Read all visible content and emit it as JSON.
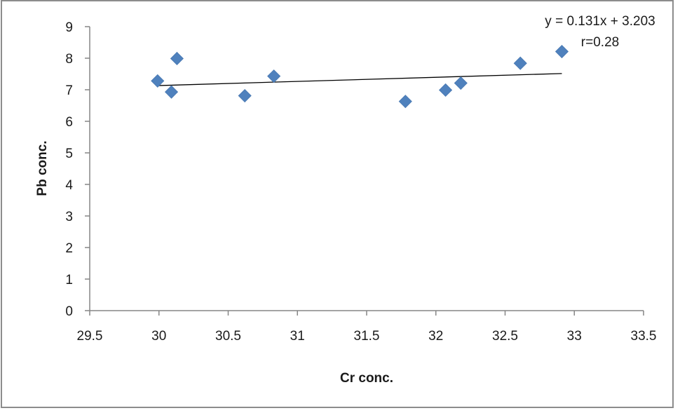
{
  "chart_data": {
    "type": "scatter",
    "xlabel": "Cr conc.",
    "ylabel": "Pb conc.",
    "xlim": [
      29.5,
      33.5
    ],
    "ylim": [
      0,
      9
    ],
    "x_ticks": [
      29.5,
      30,
      30.5,
      31,
      31.5,
      32,
      32.5,
      33,
      33.5
    ],
    "y_ticks": [
      0,
      1,
      2,
      3,
      4,
      5,
      6,
      7,
      8,
      9
    ],
    "grid": false,
    "marker": "diamond",
    "marker_color": "#4f81bd",
    "trendline_color": "#000000",
    "points": [
      {
        "x": 29.99,
        "y": 7.28
      },
      {
        "x": 30.09,
        "y": 6.93
      },
      {
        "x": 30.13,
        "y": 7.99
      },
      {
        "x": 30.62,
        "y": 6.81
      },
      {
        "x": 30.83,
        "y": 7.43
      },
      {
        "x": 31.78,
        "y": 6.63
      },
      {
        "x": 32.07,
        "y": 6.99
      },
      {
        "x": 32.18,
        "y": 7.21
      },
      {
        "x": 32.61,
        "y": 7.84
      },
      {
        "x": 32.91,
        "y": 8.21
      }
    ],
    "trendline": {
      "slope": 0.131,
      "intercept": 3.203,
      "x_from": 29.99,
      "x_to": 32.91
    },
    "annotations": [
      "y = 0.131x + 3.203",
      "r=0.28"
    ]
  }
}
